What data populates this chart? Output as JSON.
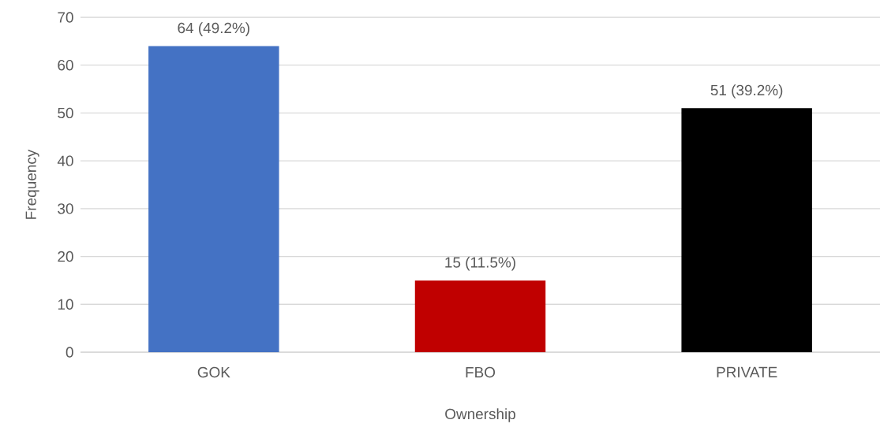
{
  "chart_data": {
    "type": "bar",
    "xlabel": "Ownership",
    "ylabel": "Frequency",
    "categories": [
      "GOK",
      "FBO",
      "PRIVATE"
    ],
    "values": [
      64,
      15,
      51
    ],
    "colors": [
      "#4472c4",
      "#c00000",
      "#000000"
    ],
    "value_labels": [
      "64 (49.2%)",
      "15 (11.5%)",
      "51 (39.2%)"
    ],
    "ylim": [
      0,
      70
    ],
    "yticks": [
      0,
      10,
      20,
      30,
      40,
      50,
      60,
      70
    ],
    "grid": "y"
  }
}
